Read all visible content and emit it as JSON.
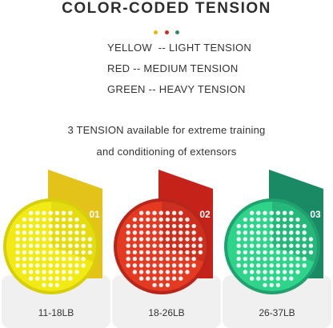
{
  "title": "COLOR-CODED TENSION",
  "dot_colors": [
    "#e6b800",
    "#d62b1f",
    "#2e8b66"
  ],
  "tension_lines": [
    "YELLOW  -- LIGHT TENSION",
    "RED -- MEDIUM TENSION",
    "GREEN -- HEAVY TENSION"
  ],
  "description": [
    "3 TENSION available for extreme training",
    "and conditioning of extensors"
  ],
  "products": [
    {
      "number": "01",
      "range": "11-18LB",
      "card_color": "#e3c21a",
      "disc_color": "#f2ea15",
      "disc_dark": "#d8cf0c"
    },
    {
      "number": "02",
      "range": "18-26LB",
      "card_color": "#c5231a",
      "disc_color": "#e43a22",
      "disc_dark": "#b8261b"
    },
    {
      "number": "03",
      "range": "26-37LB",
      "card_color": "#1a8a64",
      "disc_color": "#2ed48a",
      "disc_dark": "#21a070"
    }
  ]
}
